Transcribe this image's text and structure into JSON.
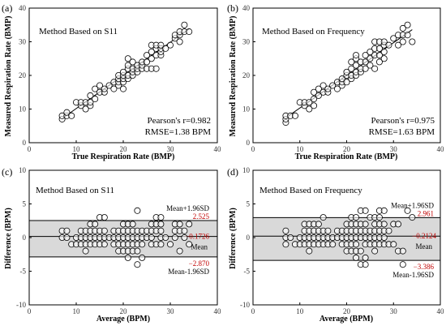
{
  "figure": {
    "panels": [
      {
        "letter": "(a)",
        "title": "Method Based on S11",
        "stat1": "Pearson's r=0.982",
        "stat2": "RMSE=1.38 BPM"
      },
      {
        "letter": "(b)",
        "title": "Method Based on Frequency",
        "stat1": "Pearson's r=0.975",
        "stat2": "RMSE=1.63 BPM"
      },
      {
        "letter": "(c)",
        "title": "Method Based on S11",
        "upper_label": "Mean+1.96SD",
        "upper_value": "2.525",
        "mean_label": "Mean",
        "mean_value": "0.1726",
        "lower_label": "Mean-1.96SD",
        "lower_value": "-2.870"
      },
      {
        "letter": "(d)",
        "title": "Method Based on Frequency",
        "upper_label": "Mean+1.96SD",
        "upper_value": "2.961",
        "mean_label": "Mean",
        "mean_value": "0.2124",
        "lower_label": "Mean-1.96SD",
        "lower_value": "-3.386"
      }
    ]
  },
  "colors": {
    "marker_stroke": "#000000",
    "annotation_red": "#c00000",
    "band_fill": "#d9d9d9",
    "axis": "#000000"
  },
  "chart_data": [
    {
      "type": "scatter",
      "title": "Method Based on S11",
      "xlabel": "True Respiration Rate (BMP)",
      "ylabel": "Measured Respiration Rate (BMP)",
      "xlim": [
        0,
        40
      ],
      "ylim": [
        0,
        40
      ],
      "xticks": [
        0,
        10,
        20,
        30,
        40
      ],
      "yticks": [
        0,
        10,
        20,
        30,
        40
      ],
      "fit_line": {
        "x": [
          7,
          34
        ],
        "y": [
          7.2,
          33.8
        ]
      },
      "annotations": [
        "Pearson's r=0.982",
        "RMSE=1.38 BPM"
      ],
      "points": [
        [
          7,
          7
        ],
        [
          7,
          8
        ],
        [
          8,
          8
        ],
        [
          8,
          9
        ],
        [
          9,
          8
        ],
        [
          10,
          12
        ],
        [
          11,
          11
        ],
        [
          11,
          12
        ],
        [
          12,
          10
        ],
        [
          12,
          12
        ],
        [
          13,
          11
        ],
        [
          13,
          12
        ],
        [
          13,
          14
        ],
        [
          14,
          13
        ],
        [
          14,
          16
        ],
        [
          15,
          15
        ],
        [
          15,
          17
        ],
        [
          16,
          15
        ],
        [
          16,
          16
        ],
        [
          17,
          17
        ],
        [
          18,
          16
        ],
        [
          18,
          18
        ],
        [
          19,
          17
        ],
        [
          19,
          18
        ],
        [
          19,
          19
        ],
        [
          19,
          20
        ],
        [
          20,
          16
        ],
        [
          20,
          18
        ],
        [
          20,
          19
        ],
        [
          20,
          20
        ],
        [
          20,
          21
        ],
        [
          21,
          19
        ],
        [
          21,
          20
        ],
        [
          21,
          22
        ],
        [
          21,
          23
        ],
        [
          21,
          25
        ],
        [
          22,
          20
        ],
        [
          22,
          21
        ],
        [
          22,
          22
        ],
        [
          22,
          24
        ],
        [
          23,
          21
        ],
        [
          23,
          22
        ],
        [
          23,
          23
        ],
        [
          24,
          22
        ],
        [
          24,
          23
        ],
        [
          24,
          24
        ],
        [
          25,
          22
        ],
        [
          25,
          24
        ],
        [
          25,
          26
        ],
        [
          26,
          22
        ],
        [
          26,
          25
        ],
        [
          26,
          27
        ],
        [
          26,
          29
        ],
        [
          27,
          22
        ],
        [
          27,
          26
        ],
        [
          27,
          28
        ],
        [
          27,
          29
        ],
        [
          28,
          26
        ],
        [
          28,
          27
        ],
        [
          28,
          28
        ],
        [
          28,
          29
        ],
        [
          29,
          28
        ],
        [
          30,
          29
        ],
        [
          31,
          31
        ],
        [
          31,
          32
        ],
        [
          32,
          30
        ],
        [
          32,
          32
        ],
        [
          32,
          33
        ],
        [
          33,
          33
        ],
        [
          33,
          35
        ],
        [
          34,
          33
        ]
      ]
    },
    {
      "type": "scatter",
      "title": "Method Based on Frequency",
      "xlabel": "True Respiration Rate (BMP)",
      "ylabel": "Measured Respiration Rate (BMP)",
      "xlim": [
        0,
        40
      ],
      "ylim": [
        0,
        40
      ],
      "xticks": [
        0,
        10,
        20,
        30,
        40
      ],
      "yticks": [
        0,
        10,
        20,
        30,
        40
      ],
      "fit_line": {
        "x": [
          7,
          34
        ],
        "y": [
          7.4,
          33.6
        ]
      },
      "annotations": [
        "Pearson's r=0.975",
        "RMSE=1.63 BPM"
      ],
      "points": [
        [
          7,
          6
        ],
        [
          7,
          7
        ],
        [
          7,
          8
        ],
        [
          8,
          8
        ],
        [
          9,
          8
        ],
        [
          10,
          12
        ],
        [
          11,
          11
        ],
        [
          11,
          12
        ],
        [
          12,
          10
        ],
        [
          12,
          12
        ],
        [
          13,
          11
        ],
        [
          13,
          13
        ],
        [
          13,
          15
        ],
        [
          14,
          14
        ],
        [
          14,
          16
        ],
        [
          15,
          15
        ],
        [
          15,
          17
        ],
        [
          16,
          15
        ],
        [
          16,
          16
        ],
        [
          17,
          17
        ],
        [
          18,
          16
        ],
        [
          18,
          18
        ],
        [
          19,
          17
        ],
        [
          19,
          18
        ],
        [
          19,
          19
        ],
        [
          20,
          18
        ],
        [
          20,
          20
        ],
        [
          20,
          21
        ],
        [
          21,
          19
        ],
        [
          21,
          20
        ],
        [
          21,
          22
        ],
        [
          21,
          24
        ],
        [
          22,
          20
        ],
        [
          22,
          21
        ],
        [
          22,
          23
        ],
        [
          22,
          25
        ],
        [
          22,
          26
        ],
        [
          23,
          21
        ],
        [
          23,
          22
        ],
        [
          23,
          24
        ],
        [
          24,
          22
        ],
        [
          24,
          24
        ],
        [
          24,
          26
        ],
        [
          25,
          23
        ],
        [
          25,
          25
        ],
        [
          25,
          27
        ],
        [
          26,
          22
        ],
        [
          26,
          26
        ],
        [
          26,
          28
        ],
        [
          26,
          30
        ],
        [
          27,
          24
        ],
        [
          27,
          26
        ],
        [
          27,
          28
        ],
        [
          27,
          30
        ],
        [
          28,
          25
        ],
        [
          28,
          27
        ],
        [
          28,
          29
        ],
        [
          28,
          30
        ],
        [
          29,
          29
        ],
        [
          30,
          31
        ],
        [
          31,
          29
        ],
        [
          31,
          32
        ],
        [
          32,
          30
        ],
        [
          32,
          32
        ],
        [
          32,
          34
        ],
        [
          33,
          35
        ],
        [
          33,
          32
        ],
        [
          34,
          30
        ]
      ]
    },
    {
      "type": "scatter",
      "title": "Method Based on S11",
      "xlabel": "Average (BPM)",
      "ylabel": "Difference (BPM)",
      "xlim": [
        0,
        40
      ],
      "ylim": [
        -10,
        10
      ],
      "xticks": [
        0,
        10,
        20,
        30,
        40
      ],
      "yticks": [
        -10,
        -5,
        0,
        5,
        10
      ],
      "reference_lines": {
        "upper": 2.525,
        "mean": 0.1726,
        "lower": -2.87
      },
      "points": [
        [
          7,
          1
        ],
        [
          7,
          0
        ],
        [
          8,
          0
        ],
        [
          8,
          1
        ],
        [
          9,
          -1
        ],
        [
          10,
          -1
        ],
        [
          10,
          0
        ],
        [
          11,
          0
        ],
        [
          11,
          -1
        ],
        [
          11,
          1
        ],
        [
          12,
          -2
        ],
        [
          12,
          -1
        ],
        [
          12,
          0
        ],
        [
          12,
          1
        ],
        [
          13,
          -1
        ],
        [
          13,
          0
        ],
        [
          13,
          1
        ],
        [
          13,
          2
        ],
        [
          14,
          -1
        ],
        [
          14,
          0
        ],
        [
          14,
          1
        ],
        [
          14,
          2
        ],
        [
          15,
          0
        ],
        [
          15,
          1
        ],
        [
          15,
          -1
        ],
        [
          15,
          3
        ],
        [
          16,
          0
        ],
        [
          16,
          1
        ],
        [
          16,
          -1
        ],
        [
          16,
          3
        ],
        [
          17,
          0
        ],
        [
          18,
          -1
        ],
        [
          18,
          0
        ],
        [
          18,
          1
        ],
        [
          19,
          0
        ],
        [
          19,
          1
        ],
        [
          19,
          -1
        ],
        [
          19,
          -2
        ],
        [
          20,
          0
        ],
        [
          20,
          1
        ],
        [
          20,
          2
        ],
        [
          20,
          -1
        ],
        [
          20,
          -2
        ],
        [
          21,
          0
        ],
        [
          21,
          1
        ],
        [
          21,
          2
        ],
        [
          21,
          -1
        ],
        [
          21,
          -2
        ],
        [
          21,
          -3
        ],
        [
          22,
          0
        ],
        [
          22,
          1
        ],
        [
          22,
          2
        ],
        [
          22,
          -1
        ],
        [
          22,
          -2
        ],
        [
          23,
          0
        ],
        [
          23,
          1
        ],
        [
          23,
          -1
        ],
        [
          23,
          -2
        ],
        [
          23,
          -4
        ],
        [
          23,
          4
        ],
        [
          24,
          0
        ],
        [
          24,
          1
        ],
        [
          24,
          -1
        ],
        [
          24,
          -3
        ],
        [
          25,
          0
        ],
        [
          25,
          1
        ],
        [
          26,
          0
        ],
        [
          26,
          1
        ],
        [
          26,
          2
        ],
        [
          26,
          -1
        ],
        [
          27,
          -1
        ],
        [
          27,
          1
        ],
        [
          27,
          2
        ],
        [
          27,
          3
        ],
        [
          28,
          0
        ],
        [
          28,
          -1
        ],
        [
          28,
          1
        ],
        [
          28,
          2
        ],
        [
          28,
          3
        ],
        [
          29,
          0
        ],
        [
          30,
          -1
        ],
        [
          31,
          2
        ],
        [
          31,
          1
        ],
        [
          31,
          0
        ],
        [
          32,
          -2
        ],
        [
          32,
          1
        ],
        [
          32,
          2
        ],
        [
          33,
          0
        ],
        [
          33,
          1
        ],
        [
          34,
          -1
        ],
        [
          34,
          2
        ]
      ]
    },
    {
      "type": "scatter",
      "title": "Method Based on Frequency",
      "xlabel": "Average (BPM)",
      "ylabel": "Difference (BPM)",
      "xlim": [
        0,
        40
      ],
      "ylim": [
        -10,
        10
      ],
      "xticks": [
        0,
        10,
        20,
        30,
        40
      ],
      "yticks": [
        -10,
        -5,
        0,
        5,
        10
      ],
      "reference_lines": {
        "upper": 2.961,
        "mean": 0.2124,
        "lower": -3.386
      },
      "points": [
        [
          7,
          1
        ],
        [
          7,
          0
        ],
        [
          7,
          -1
        ],
        [
          8,
          0
        ],
        [
          9,
          -1
        ],
        [
          10,
          -1
        ],
        [
          10,
          0
        ],
        [
          11,
          0
        ],
        [
          11,
          1
        ],
        [
          11,
          2
        ],
        [
          11,
          -1
        ],
        [
          12,
          0
        ],
        [
          12,
          1
        ],
        [
          12,
          2
        ],
        [
          12,
          -1
        ],
        [
          12,
          -2
        ],
        [
          13,
          0
        ],
        [
          13,
          1
        ],
        [
          13,
          2
        ],
        [
          13,
          -1
        ],
        [
          14,
          0
        ],
        [
          14,
          1
        ],
        [
          14,
          2
        ],
        [
          14,
          -1
        ],
        [
          15,
          0
        ],
        [
          15,
          1
        ],
        [
          15,
          -1
        ],
        [
          15,
          3
        ],
        [
          16,
          0
        ],
        [
          16,
          1
        ],
        [
          16,
          -1
        ],
        [
          17,
          0
        ],
        [
          17,
          -1
        ],
        [
          18,
          0
        ],
        [
          18,
          1
        ],
        [
          19,
          0
        ],
        [
          19,
          1
        ],
        [
          19,
          -1
        ],
        [
          20,
          0
        ],
        [
          20,
          1
        ],
        [
          20,
          2
        ],
        [
          20,
          -1
        ],
        [
          20,
          -2
        ],
        [
          21,
          0
        ],
        [
          21,
          1
        ],
        [
          21,
          2
        ],
        [
          21,
          3
        ],
        [
          21,
          -1
        ],
        [
          21,
          -2
        ],
        [
          22,
          0
        ],
        [
          22,
          1
        ],
        [
          22,
          2
        ],
        [
          22,
          3
        ],
        [
          22,
          -1
        ],
        [
          22,
          -2
        ],
        [
          22,
          -3
        ],
        [
          23,
          0
        ],
        [
          23,
          1
        ],
        [
          23,
          2
        ],
        [
          23,
          -2
        ],
        [
          23,
          -4
        ],
        [
          23,
          4
        ],
        [
          24,
          0
        ],
        [
          24,
          1
        ],
        [
          24,
          2
        ],
        [
          24,
          -1
        ],
        [
          24,
          -3
        ],
        [
          24,
          -4
        ],
        [
          24,
          4
        ],
        [
          25,
          0
        ],
        [
          25,
          1
        ],
        [
          25,
          -1
        ],
        [
          25,
          3
        ],
        [
          26,
          0
        ],
        [
          26,
          1
        ],
        [
          26,
          2
        ],
        [
          26,
          3
        ],
        [
          26,
          -1
        ],
        [
          26,
          -2
        ],
        [
          27,
          0
        ],
        [
          27,
          1
        ],
        [
          27,
          2
        ],
        [
          27,
          3
        ],
        [
          27,
          4
        ],
        [
          27,
          -1
        ],
        [
          28,
          0
        ],
        [
          28,
          1
        ],
        [
          28,
          2
        ],
        [
          28,
          4
        ],
        [
          28,
          -1
        ],
        [
          29,
          -1
        ],
        [
          29,
          1
        ],
        [
          30,
          2
        ],
        [
          30,
          -1
        ],
        [
          31,
          2
        ],
        [
          31,
          -2
        ],
        [
          32,
          -2
        ],
        [
          32,
          -4
        ],
        [
          33,
          4
        ],
        [
          34,
          3
        ]
      ]
    }
  ]
}
